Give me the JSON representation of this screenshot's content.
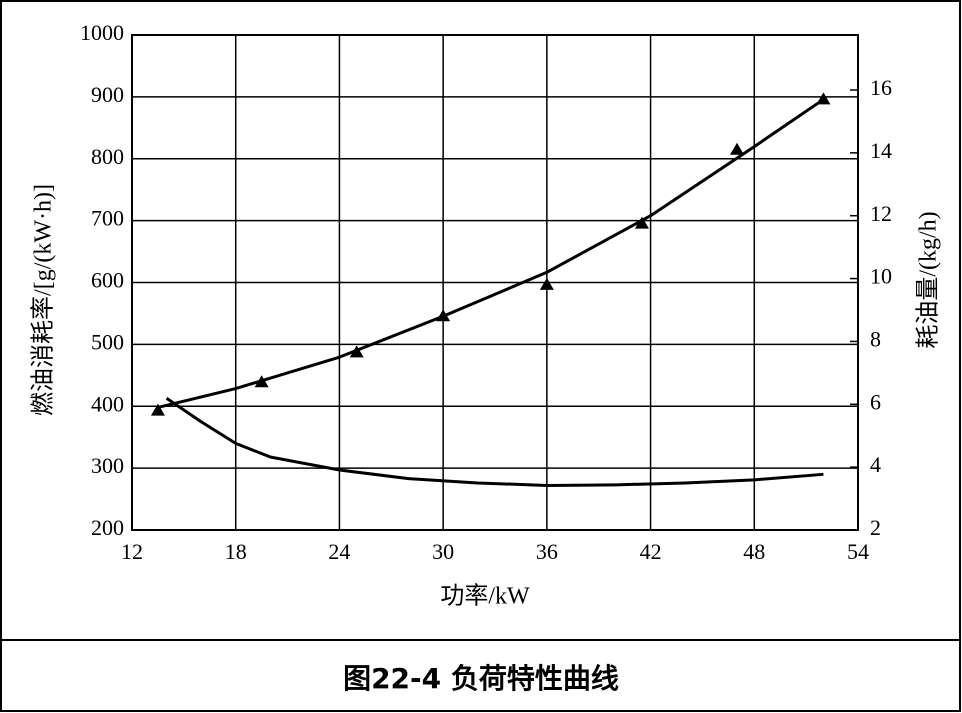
{
  "chart_data": {
    "type": "line",
    "title": "图22-4  负荷特性曲线",
    "x_label": "功率/kW",
    "y_label": "燃油消耗率/[g/(kW·h)]",
    "y2_label": "耗油量/(kg/h)",
    "xlim": [
      12,
      54
    ],
    "xticks": [
      12,
      18,
      24,
      30,
      36,
      42,
      48,
      54
    ],
    "ylim": [
      200,
      1000
    ],
    "yticks": [
      200,
      300,
      400,
      500,
      600,
      700,
      800,
      900,
      1000
    ],
    "y2lim": [
      2,
      17.75
    ],
    "y2ticks": [
      2,
      4,
      6,
      8,
      10,
      12,
      14,
      16
    ],
    "grid": true,
    "series": [
      {
        "color": "#000000",
        "axis": "y",
        "marker": "none",
        "x": [
          14,
          16,
          18,
          20,
          24,
          28,
          32,
          36,
          40,
          44,
          48,
          52
        ],
        "values": [
          413,
          375,
          340,
          318,
          297,
          283,
          276,
          272,
          273,
          276,
          281,
          290
        ]
      },
      {
        "color": "#000000",
        "axis": "y2",
        "marker": "none",
        "x": [
          13.5,
          18,
          24,
          30,
          36,
          42,
          48,
          52
        ],
        "values": [
          5.9,
          6.5,
          7.5,
          8.8,
          10.2,
          12,
          14.2,
          15.7
        ]
      },
      {
        "color": "#000000",
        "axis": "y2",
        "marker": "triangle",
        "x": [
          13.5,
          19.5,
          25,
          30,
          36,
          41.5,
          47,
          52
        ],
        "values": [
          5.8,
          6.7,
          7.65,
          8.8,
          9.8,
          11.75,
          14.1,
          15.7
        ]
      }
    ]
  }
}
